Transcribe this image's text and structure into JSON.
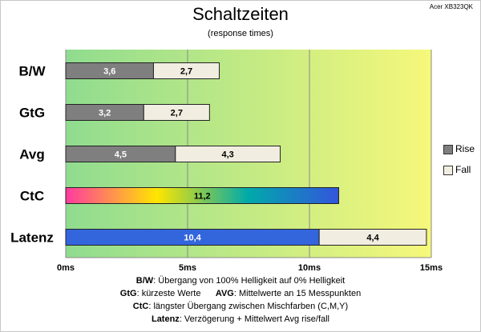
{
  "title": "Schaltzeiten",
  "subtitle": "(response times)",
  "model": "Acer XB323QK",
  "chart_data": {
    "type": "bar",
    "orientation": "horizontal",
    "stacked": true,
    "categories": [
      "B/W",
      "GtG",
      "Avg",
      "CtC",
      "Latenz"
    ],
    "series": [
      {
        "name": "Rise",
        "values": [
          3.6,
          3.2,
          4.5,
          11.2,
          10.4
        ],
        "labels": [
          "3,6",
          "3,2",
          "4,5",
          "11,2",
          "10,4"
        ]
      },
      {
        "name": "Fall",
        "values": [
          2.7,
          2.7,
          4.3,
          null,
          4.4
        ],
        "labels": [
          "2,7",
          "2,7",
          "4,3",
          "",
          "4,4"
        ]
      }
    ],
    "xlim": [
      0,
      15
    ],
    "xticks": [
      0,
      5,
      10,
      15
    ],
    "xtick_labels": [
      "0ms",
      "5ms",
      "10ms",
      "15ms"
    ],
    "grid": true,
    "legend_position": "right",
    "background_gradient": [
      "#8fdc8f",
      "#f6f87a"
    ],
    "colors": {
      "rise": "#7f7f7f",
      "fall": "#f1ede1",
      "latenz_rise": "#3366dd",
      "ctc_gradient": [
        "#ff3aa0",
        "#ffe600",
        "#00aaaa",
        "#3355dd"
      ]
    }
  },
  "notes": {
    "line1": {
      "b1": "B/W",
      "t1": ":  Übergang von 100% Helligkeit auf 0% Helligkeit"
    },
    "line2": {
      "b1": "GtG",
      "t1": ": kürzeste  Werte",
      "b2": "AVG",
      "t2": ": Mittelwerte  an 15 Messpunkten"
    },
    "line3": {
      "b1": "CtC",
      "t1": ": längster Übergang  zwischen Mischfarben  (C,M,Y)"
    },
    "line4": {
      "b1": "Latenz",
      "t1": ": Verzögerung  + Mittelwert  Avg rise/fall"
    }
  }
}
